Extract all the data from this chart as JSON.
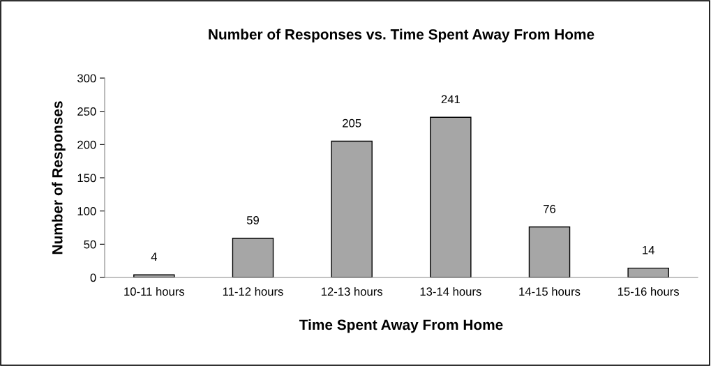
{
  "chart_data": {
    "type": "bar",
    "title": "Number of Responses vs. Time Spent Away From Home",
    "xlabel": "Time Spent Away From Home",
    "ylabel": "Number of Responses",
    "categories": [
      "10-11 hours",
      "11-12 hours",
      "12-13 hours",
      "13-14 hours",
      "14-15 hours",
      "15-16 hours"
    ],
    "values": [
      4,
      59,
      205,
      241,
      76,
      14
    ],
    "color": "#a6a6a6",
    "ylim": [
      0,
      300
    ],
    "yticks": [
      0,
      50,
      100,
      150,
      200,
      250,
      300
    ],
    "grid": false,
    "data_labels": true
  }
}
